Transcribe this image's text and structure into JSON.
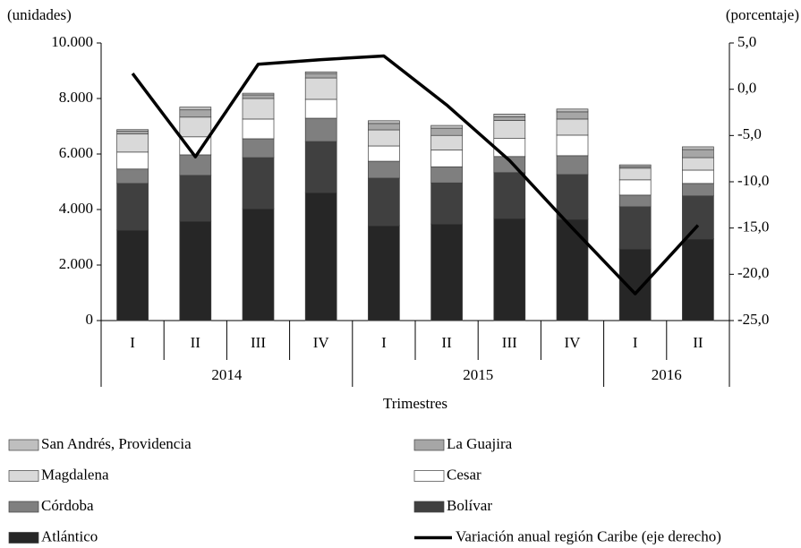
{
  "chart_data": {
    "type": "bar",
    "stacked": true,
    "y_label": "(unidades)",
    "y2_label": "(porcentaje)",
    "x_label": "Trimestres",
    "groups": [
      {
        "label": "2014",
        "categories": [
          "I",
          "II",
          "III",
          "IV"
        ]
      },
      {
        "label": "2015",
        "categories": [
          "I",
          "II",
          "III",
          "IV"
        ]
      },
      {
        "label": "2016",
        "categories": [
          "I",
          "II"
        ]
      }
    ],
    "ylim": [
      0,
      10000
    ],
    "yticks": [
      0,
      {
        "value": 2000,
        "label": "2.000"
      },
      {
        "value": 4000,
        "label": "4.000"
      },
      {
        "value": 6000,
        "label": "6.000"
      },
      {
        "value": 8000,
        "label": "8.000"
      },
      {
        "value": 10000,
        "label": "10.000"
      }
    ],
    "y2lim": [
      -25,
      5
    ],
    "y2ticks": [
      {
        "value": 5,
        "label": "5,0"
      },
      {
        "value": 0,
        "label": "0,0"
      },
      {
        "value": -5,
        "label": "-5,0"
      },
      {
        "value": -10,
        "label": "-10,0"
      },
      {
        "value": -15,
        "label": "-15,0"
      },
      {
        "value": -20,
        "label": "-20,0"
      },
      {
        "value": -25,
        "label": "-25,0"
      }
    ],
    "legend": "bottom",
    "series": [
      {
        "name": "Atlántico",
        "color": "#262626",
        "values": [
          3260,
          3580,
          4030,
          4610,
          3420,
          3480,
          3680,
          3650,
          2580,
          2940
        ]
      },
      {
        "name": "Bolívar",
        "color": "#404040",
        "values": [
          1680,
          1650,
          1840,
          1840,
          1710,
          1480,
          1650,
          1610,
          1520,
          1550
        ]
      },
      {
        "name": "Córdoba",
        "color": "#7f7f7f",
        "values": [
          520,
          740,
          680,
          840,
          610,
          580,
          580,
          680,
          420,
          450
        ]
      },
      {
        "name": "Cesar",
        "color": "#ffffff",
        "values": [
          610,
          650,
          710,
          680,
          550,
          610,
          650,
          740,
          550,
          480
        ]
      },
      {
        "name": "Magdalena",
        "color": "#d9d9d9",
        "values": [
          650,
          710,
          740,
          770,
          580,
          520,
          650,
          580,
          420,
          450
        ]
      },
      {
        "name": "La Guajira",
        "color": "#a6a6a6",
        "values": [
          100,
          260,
          130,
          160,
          230,
          260,
          130,
          260,
          60,
          290
        ]
      },
      {
        "name": "San Andrés, Providencia",
        "color": "#bfbfbf",
        "values": [
          60,
          100,
          60,
          60,
          100,
          100,
          100,
          100,
          60,
          100
        ]
      },
      {
        "name": "Variación anual región Caribe (eje derecho)",
        "color": "#000000",
        "type": "line",
        "axis": "y2",
        "values": [
          1.7,
          -7.3,
          2.7,
          3.2,
          3.6,
          -1.7,
          -7.7,
          -15.0,
          -22.1,
          -14.7
        ]
      }
    ]
  }
}
